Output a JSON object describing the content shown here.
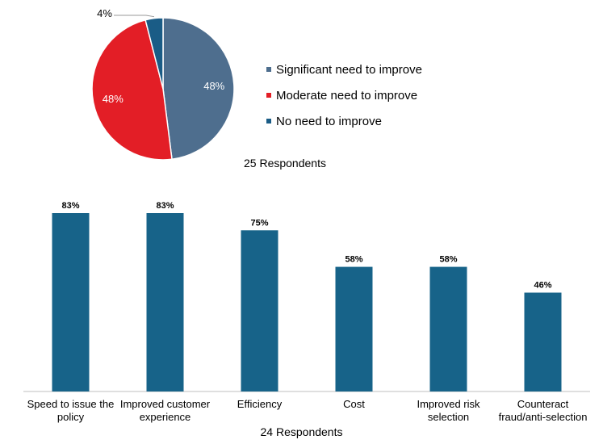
{
  "chart_data": [
    {
      "type": "pie",
      "title": "",
      "caption": "25 Respondents",
      "slices": [
        {
          "label": "Significant need to improve",
          "value": 48,
          "display": "48%",
          "color": "#4E6E8E"
        },
        {
          "label": "Moderate need to improve",
          "value": 48,
          "display": "48%",
          "color": "#E31E26"
        },
        {
          "label": "No need to improve",
          "value": 4,
          "display": "4%",
          "color": "#1A5C86"
        }
      ],
      "legend_position": "right"
    },
    {
      "type": "bar",
      "title": "",
      "caption": "24 Respondents",
      "categories": [
        [
          "Speed to issue the",
          "policy"
        ],
        [
          "Improved customer",
          "experience"
        ],
        [
          "Efficiency"
        ],
        [
          "Cost"
        ],
        [
          "Improved risk",
          "selection"
        ],
        [
          "Counteract",
          "fraud/anti-selection"
        ]
      ],
      "values": [
        83,
        83,
        75,
        58,
        58,
        46
      ],
      "labels": [
        "83%",
        "83%",
        "75%",
        "58%",
        "58%",
        "46%"
      ],
      "ylim": [
        0,
        100
      ],
      "color": "#176389",
      "grid": false
    }
  ]
}
